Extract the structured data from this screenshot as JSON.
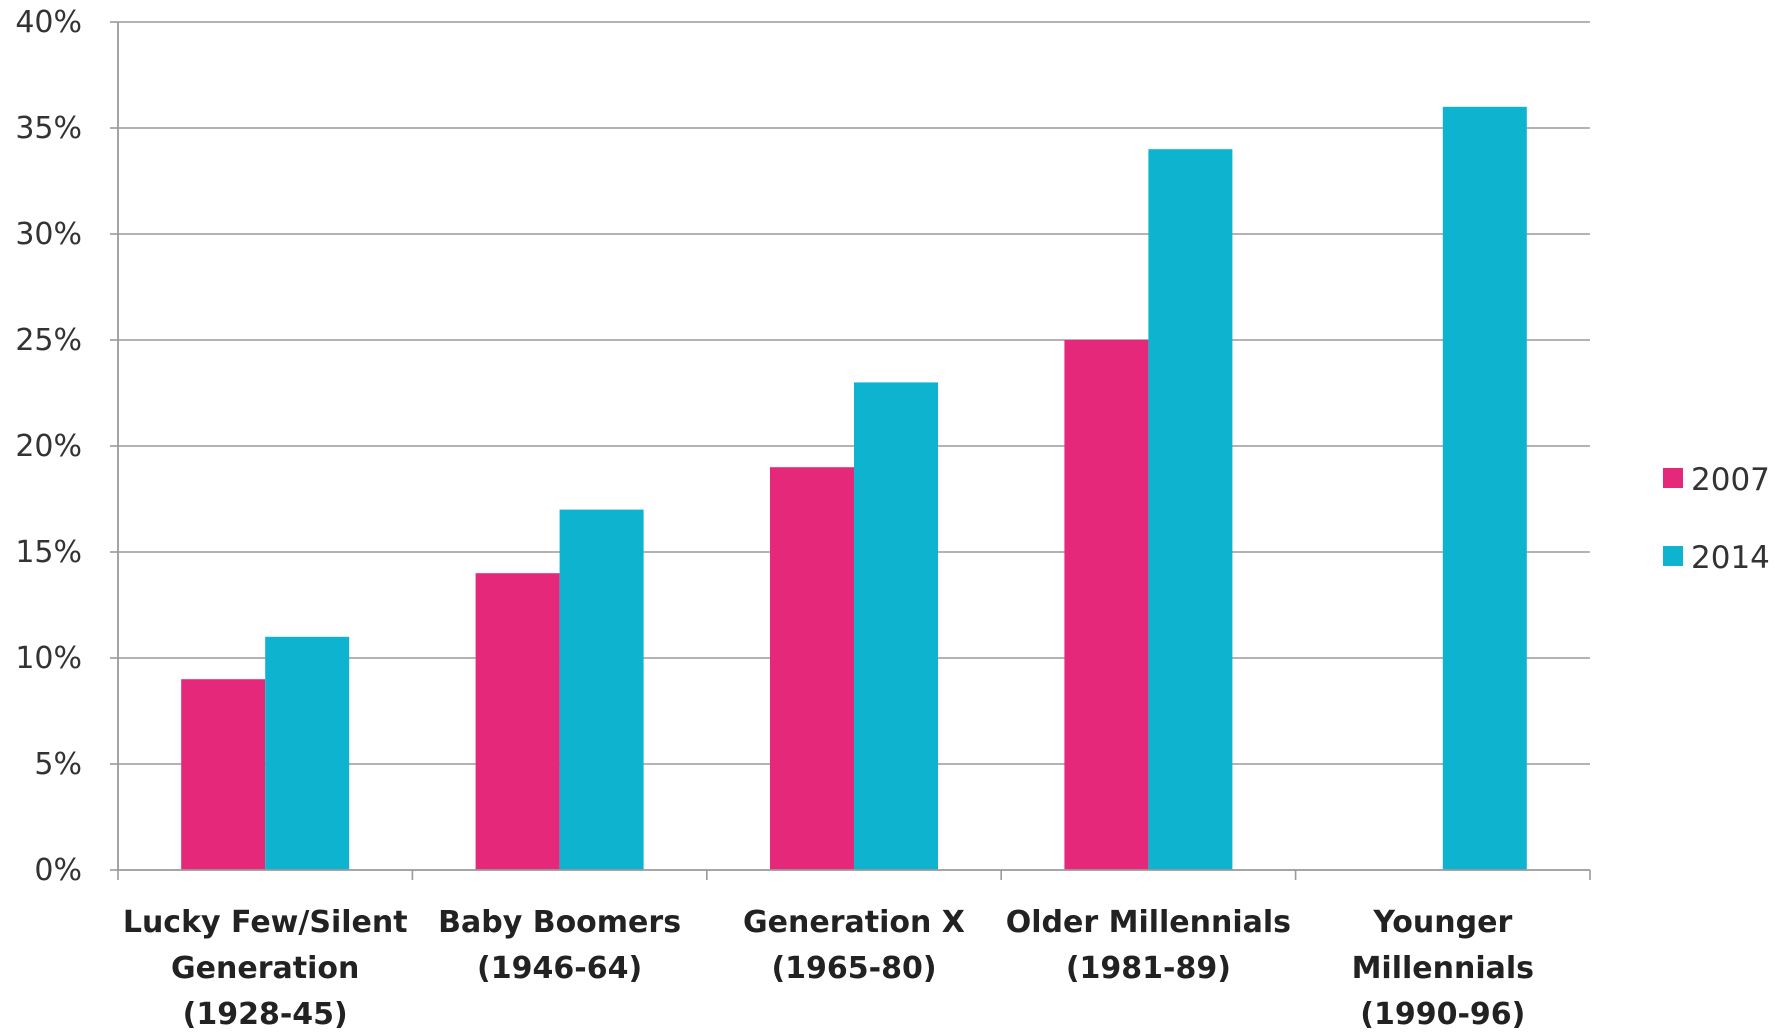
{
  "chart_data": {
    "type": "bar",
    "title": "",
    "xlabel": "",
    "ylabel": "",
    "ylim": [
      0,
      40
    ],
    "yticks": [
      0,
      5,
      10,
      15,
      20,
      25,
      30,
      35,
      40
    ],
    "ytick_labels": [
      "0%",
      "5%",
      "10%",
      "15%",
      "20%",
      "25%",
      "30%",
      "35%",
      "40%"
    ],
    "grid": true,
    "legend_position": "right",
    "categories": [
      {
        "lines": [
          "Lucky Few/Silent",
          "Generation",
          "(1928-45)"
        ]
      },
      {
        "lines": [
          "Baby Boomers",
          "(1946-64)"
        ]
      },
      {
        "lines": [
          "Generation X",
          "(1965-80)"
        ]
      },
      {
        "lines": [
          "Older Millennials",
          "(1981-89)"
        ]
      },
      {
        "lines": [
          "Younger",
          "Millennials",
          "(1990-96)"
        ]
      }
    ],
    "series": [
      {
        "name": "2007",
        "color": "#e6287a",
        "values": [
          9,
          14,
          19,
          25,
          null
        ]
      },
      {
        "name": "2014",
        "color": "#0eb4cf",
        "values": [
          11,
          17,
          23,
          34,
          36
        ]
      }
    ]
  }
}
